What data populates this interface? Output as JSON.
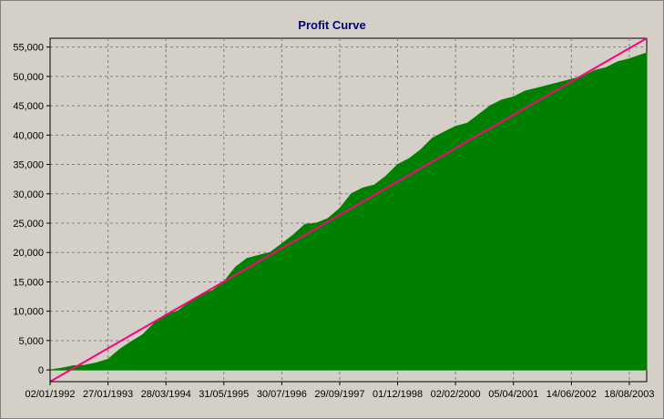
{
  "chart_data": {
    "type": "area",
    "title": "Profit Curve",
    "xlabel": "",
    "ylabel": "",
    "ylim": [
      -2000,
      56500
    ],
    "y_ticks": [
      0,
      5000,
      10000,
      15000,
      20000,
      25000,
      30000,
      35000,
      40000,
      45000,
      50000,
      55000
    ],
    "y_tick_labels": [
      "0",
      "5,000",
      "10,000",
      "15,000",
      "20,000",
      "25,000",
      "30,000",
      "35,000",
      "40,000",
      "45,000",
      "50,000",
      "55,000"
    ],
    "x_tick_labels": [
      "02/01/1992",
      "27/01/1993",
      "28/03/1994",
      "31/05/1995",
      "30/07/1996",
      "29/09/1997",
      "01/12/1998",
      "02/02/2000",
      "05/04/2001",
      "14/06/2002",
      "18/08/2003"
    ],
    "grid": true,
    "series": [
      {
        "color": "#008000",
        "x": [
          0,
          0.2,
          0.4,
          0.6,
          0.8,
          1.0,
          1.2,
          1.4,
          1.6,
          1.8,
          2.0,
          2.2,
          2.4,
          2.6,
          2.8,
          3.0,
          3.2,
          3.4,
          3.6,
          3.8,
          4.0,
          4.2,
          4.4,
          4.6,
          4.8,
          5.0,
          5.2,
          5.4,
          5.6,
          5.8,
          6.0,
          6.2,
          6.4,
          6.6,
          6.8,
          7.0,
          7.2,
          7.4,
          7.6,
          7.8,
          8.0,
          8.2,
          8.4,
          8.6,
          8.8,
          9.0,
          9.2,
          9.4,
          9.6,
          9.8,
          10.0,
          10.3
        ],
        "values": [
          0,
          300,
          700,
          800,
          1200,
          1800,
          3500,
          4800,
          6000,
          8000,
          9500,
          10000,
          11500,
          12800,
          13500,
          15000,
          17500,
          19000,
          19500,
          20000,
          21500,
          23000,
          24800,
          25000,
          25800,
          27500,
          30000,
          31000,
          31500,
          33000,
          35000,
          36000,
          37500,
          39500,
          40500,
          41500,
          42000,
          43500,
          45000,
          46000,
          46500,
          47500,
          48000,
          48500,
          49000,
          49500,
          50000,
          51000,
          51500,
          52500,
          53000,
          54000
        ]
      }
    ],
    "trendline": {
      "color": "#ff0080",
      "x": [
        0.0,
        10.3
      ],
      "values": [
        -2000,
        56500
      ]
    }
  }
}
